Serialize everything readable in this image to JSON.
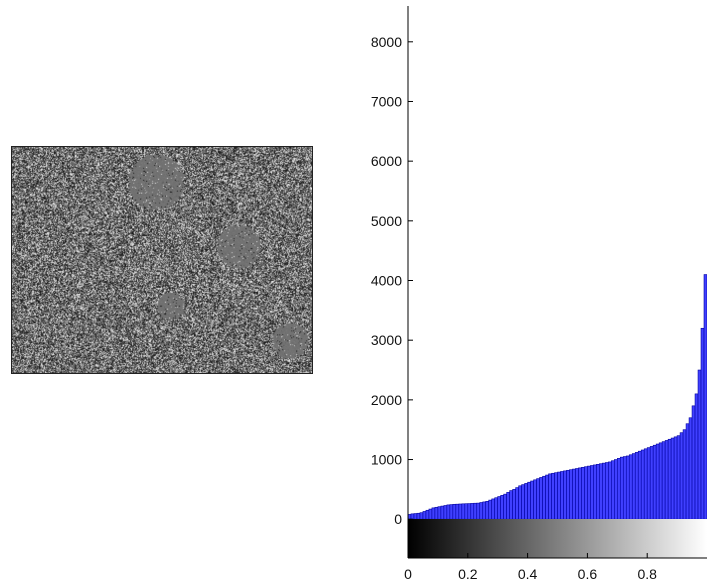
{
  "image_panel": {
    "icon": "grayscale-noise-image",
    "description_colors": {
      "base": "#6e6e6e",
      "speckle_light": "#c8c8c8",
      "speckle_dark": "#1a1a1a"
    }
  },
  "chart_data": {
    "type": "bar",
    "title": "",
    "xlabel": "",
    "ylabel": "",
    "xlim": [
      0,
      1
    ],
    "ylim": [
      -650,
      8600
    ],
    "bar_color": "#4040ff",
    "bar_edge_color": "#0000a0",
    "colorbar": "grayscale gradient from black (0) to white (1)",
    "y_ticks": [
      0,
      1000,
      2000,
      3000,
      4000,
      5000,
      6000,
      7000,
      8000
    ],
    "y_tick_labels": [
      "0",
      "1000",
      "2000",
      "3000",
      "4000",
      "5000",
      "6000",
      "7000",
      "8000"
    ],
    "x_ticks": [
      0,
      0.2,
      0.4,
      0.6,
      0.8
    ],
    "x_tick_labels": [
      "0",
      "0.2",
      "0.4",
      "0.6",
      "0.8"
    ],
    "bin_count": 100,
    "values": [
      80,
      90,
      95,
      100,
      110,
      130,
      150,
      170,
      190,
      200,
      210,
      220,
      230,
      240,
      245,
      250,
      252,
      255,
      258,
      260,
      262,
      265,
      268,
      270,
      280,
      290,
      300,
      320,
      340,
      360,
      380,
      400,
      420,
      450,
      480,
      500,
      530,
      560,
      580,
      600,
      620,
      640,
      660,
      680,
      700,
      720,
      740,
      760,
      770,
      780,
      790,
      800,
      810,
      820,
      830,
      840,
      850,
      860,
      870,
      880,
      890,
      900,
      910,
      920,
      930,
      940,
      950,
      960,
      980,
      1000,
      1020,
      1040,
      1050,
      1060,
      1080,
      1100,
      1120,
      1140,
      1160,
      1180,
      1200,
      1220,
      1240,
      1260,
      1280,
      1300,
      1320,
      1340,
      1360,
      1380,
      1400,
      1450,
      1500,
      1600,
      1700,
      1900,
      2100,
      2500,
      3200,
      4100
    ]
  }
}
